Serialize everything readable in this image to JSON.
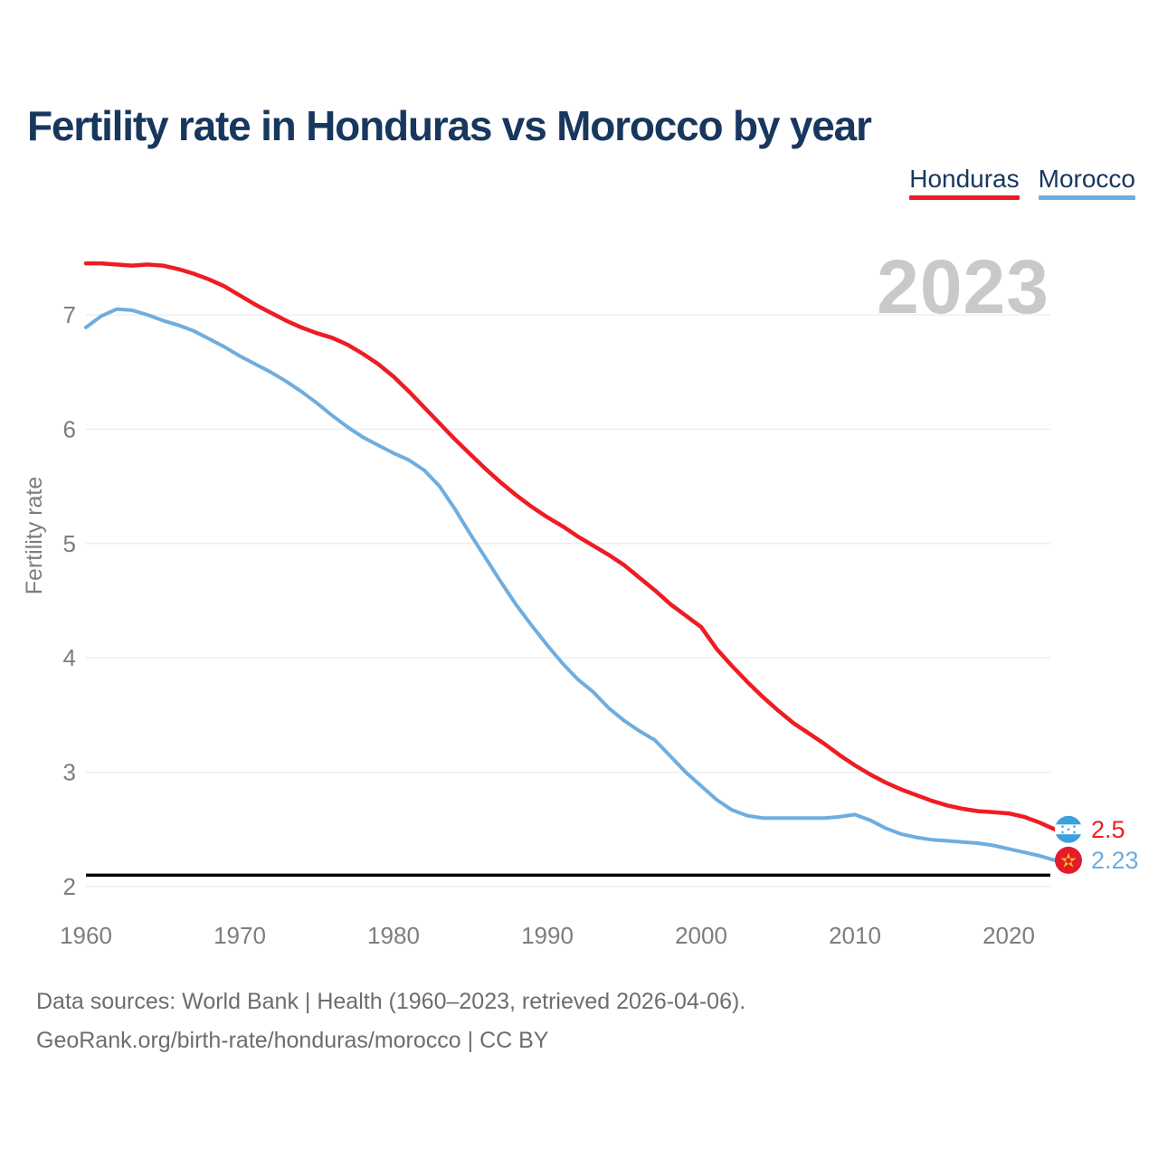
{
  "title": "Fertility rate in Honduras vs Morocco by year",
  "legend": {
    "items": [
      {
        "label": "Honduras",
        "color": "#ee1c23"
      },
      {
        "label": "Morocco",
        "color": "#6fadde"
      }
    ]
  },
  "footer": {
    "line1": "Data sources: World Bank | Health (1960–2023, retrieved 2026-04-06).",
    "line2": "GeoRank.org/birth-rate/honduras/morocco | CC BY"
  },
  "chart_data": {
    "type": "line",
    "title": "Fertility rate in Honduras vs Morocco by year",
    "ylabel": "Fertility rate",
    "watermark": "2023",
    "x_range": [
      1960,
      2023
    ],
    "ylim": [
      2,
      7.6
    ],
    "y_ticks": [
      7,
      6,
      5,
      4,
      3,
      2
    ],
    "x_ticks": [
      1960,
      1970,
      1980,
      1990,
      2000,
      2010,
      2020
    ],
    "grid": "horizontal-only",
    "legend_position": "top-right",
    "reference_line": {
      "value": 2.1,
      "color": "#000000"
    },
    "colors": {
      "grid": "#ececec",
      "axis_text": "#7d7d7d",
      "watermark": "#c9c9c9",
      "honduras_flag_blue": "#3ba0dc",
      "morocco_flag_red": "#e41b2f",
      "morocco_star_gold": "#f6c50b"
    },
    "series": [
      {
        "name": "Honduras",
        "color": "#ee1c23",
        "flag": "honduras",
        "end_label": "2.5",
        "final_value": 2.5,
        "values": [
          7.45,
          7.45,
          7.44,
          7.43,
          7.44,
          7.43,
          7.4,
          7.36,
          7.31,
          7.25,
          7.17,
          7.09,
          7.02,
          6.95,
          6.89,
          6.84,
          6.8,
          6.74,
          6.66,
          6.57,
          6.46,
          6.33,
          6.19,
          6.05,
          5.91,
          5.78,
          5.65,
          5.53,
          5.42,
          5.32,
          5.23,
          5.15,
          5.06,
          4.98,
          4.9,
          4.81,
          4.7,
          4.59,
          4.47,
          4.37,
          4.27,
          4.08,
          3.93,
          3.79,
          3.66,
          3.54,
          3.43,
          3.34,
          3.25,
          3.15,
          3.06,
          2.98,
          2.91,
          2.85,
          2.8,
          2.75,
          2.71,
          2.68,
          2.66,
          2.65,
          2.64,
          2.61,
          2.56,
          2.5
        ]
      },
      {
        "name": "Morocco",
        "color": "#6fadde",
        "flag": "morocco",
        "end_label": "2.23",
        "final_value": 2.23,
        "values": [
          6.89,
          6.99,
          7.05,
          7.04,
          7.0,
          6.95,
          6.91,
          6.86,
          6.79,
          6.72,
          6.64,
          6.57,
          6.5,
          6.42,
          6.33,
          6.23,
          6.12,
          6.02,
          5.93,
          5.86,
          5.79,
          5.73,
          5.64,
          5.5,
          5.3,
          5.08,
          4.87,
          4.66,
          4.46,
          4.28,
          4.11,
          3.95,
          3.81,
          3.7,
          3.56,
          3.45,
          3.36,
          3.28,
          3.14,
          3.0,
          2.88,
          2.76,
          2.67,
          2.62,
          2.6,
          2.6,
          2.6,
          2.6,
          2.6,
          2.61,
          2.63,
          2.58,
          2.51,
          2.46,
          2.43,
          2.41,
          2.4,
          2.39,
          2.38,
          2.36,
          2.33,
          2.3,
          2.27,
          2.23
        ]
      }
    ]
  }
}
